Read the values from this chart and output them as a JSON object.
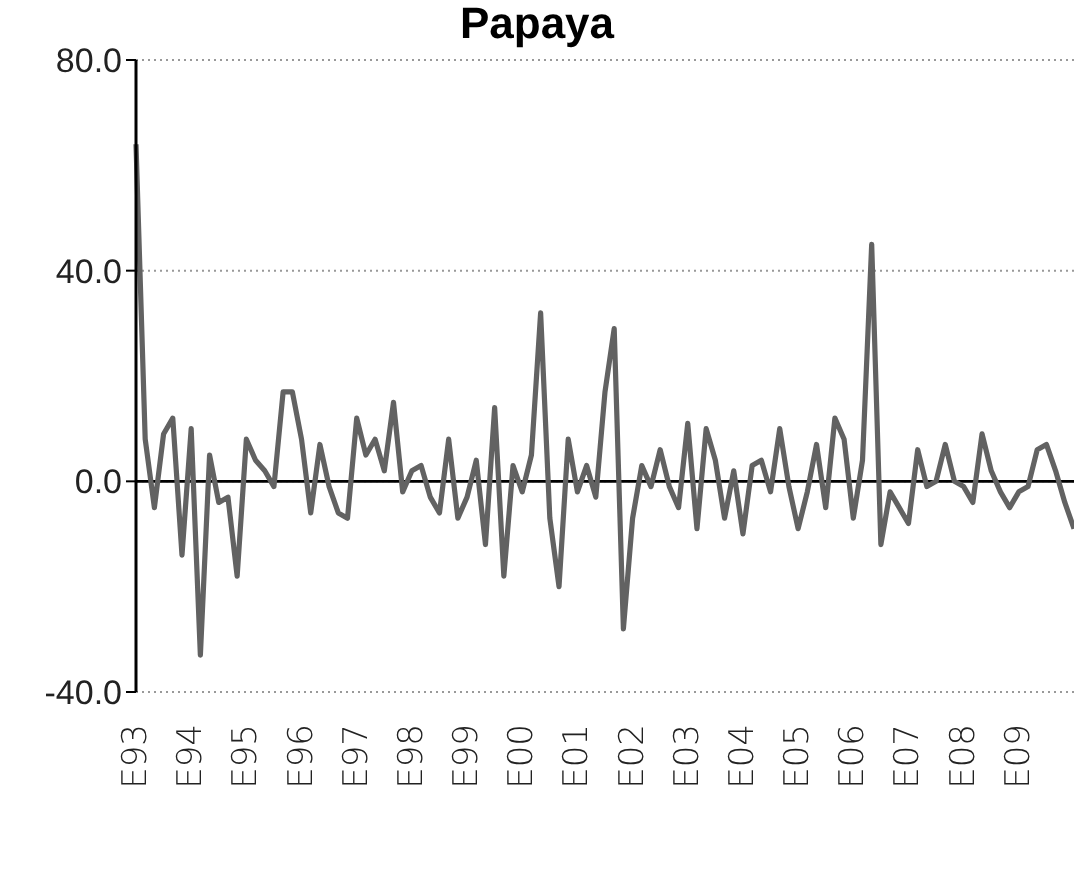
{
  "chart_data": {
    "type": "line",
    "title": "Papaya",
    "categories": [
      "E93",
      null,
      null,
      null,
      null,
      null,
      "E94",
      null,
      null,
      null,
      null,
      null,
      "E95",
      null,
      null,
      null,
      null,
      null,
      "E96",
      null,
      null,
      null,
      null,
      null,
      "E97",
      null,
      null,
      null,
      null,
      null,
      "E98",
      null,
      null,
      null,
      null,
      null,
      "E99",
      null,
      null,
      null,
      null,
      null,
      "E00",
      null,
      null,
      null,
      null,
      null,
      "E01",
      null,
      null,
      null,
      null,
      null,
      "E02",
      null,
      null,
      null,
      null,
      null,
      "E03",
      null,
      null,
      null,
      null,
      null,
      "E04",
      null,
      null,
      null,
      null,
      null,
      "E05",
      null,
      null,
      null,
      null,
      null,
      "E06",
      null,
      null,
      null,
      null,
      null,
      "E07",
      null,
      null,
      null,
      null,
      null,
      "E08",
      null,
      null,
      null,
      null,
      null,
      "E09",
      null,
      null,
      null,
      null,
      null,
      null
    ],
    "series": [
      {
        "color": "#626262",
        "values": [
          64,
          8,
          -5,
          9,
          12,
          -14,
          10,
          -33,
          5,
          -4,
          -3,
          -18,
          8,
          4,
          2,
          -1,
          17,
          17,
          8,
          -6,
          7,
          -1,
          -6,
          -7,
          12,
          5,
          8,
          2,
          15,
          -2,
          2,
          3,
          -3,
          -6,
          8,
          -7,
          -3,
          4,
          -12,
          14,
          -18,
          3,
          -2,
          5,
          32,
          -7,
          -20,
          8,
          -2,
          3,
          -3,
          17,
          29,
          -28,
          -7,
          3,
          -1,
          6,
          -1,
          -5,
          11,
          -9,
          10,
          4,
          -7,
          2,
          -10,
          3,
          4,
          -2,
          10,
          -1,
          -9,
          -2,
          7,
          -5,
          12,
          8,
          -7,
          4,
          45,
          -12,
          -2,
          -5,
          -8,
          6,
          -1,
          0,
          7,
          0,
          -1,
          -4,
          9,
          2,
          -2,
          -5,
          -2,
          -1,
          6,
          7,
          2,
          -4,
          -9
        ]
      }
    ],
    "ylim": [
      -40,
      80
    ],
    "yticks": [
      {
        "value": -40,
        "label": "-40.0"
      },
      {
        "value": 0,
        "label": "0.0"
      },
      {
        "value": 40,
        "label": "40.0"
      },
      {
        "value": 80,
        "label": "80.0"
      }
    ],
    "grid": "y",
    "ref_lines": [
      {
        "axis": "y",
        "value": 0,
        "color": "#000000"
      }
    ],
    "legend": false
  }
}
